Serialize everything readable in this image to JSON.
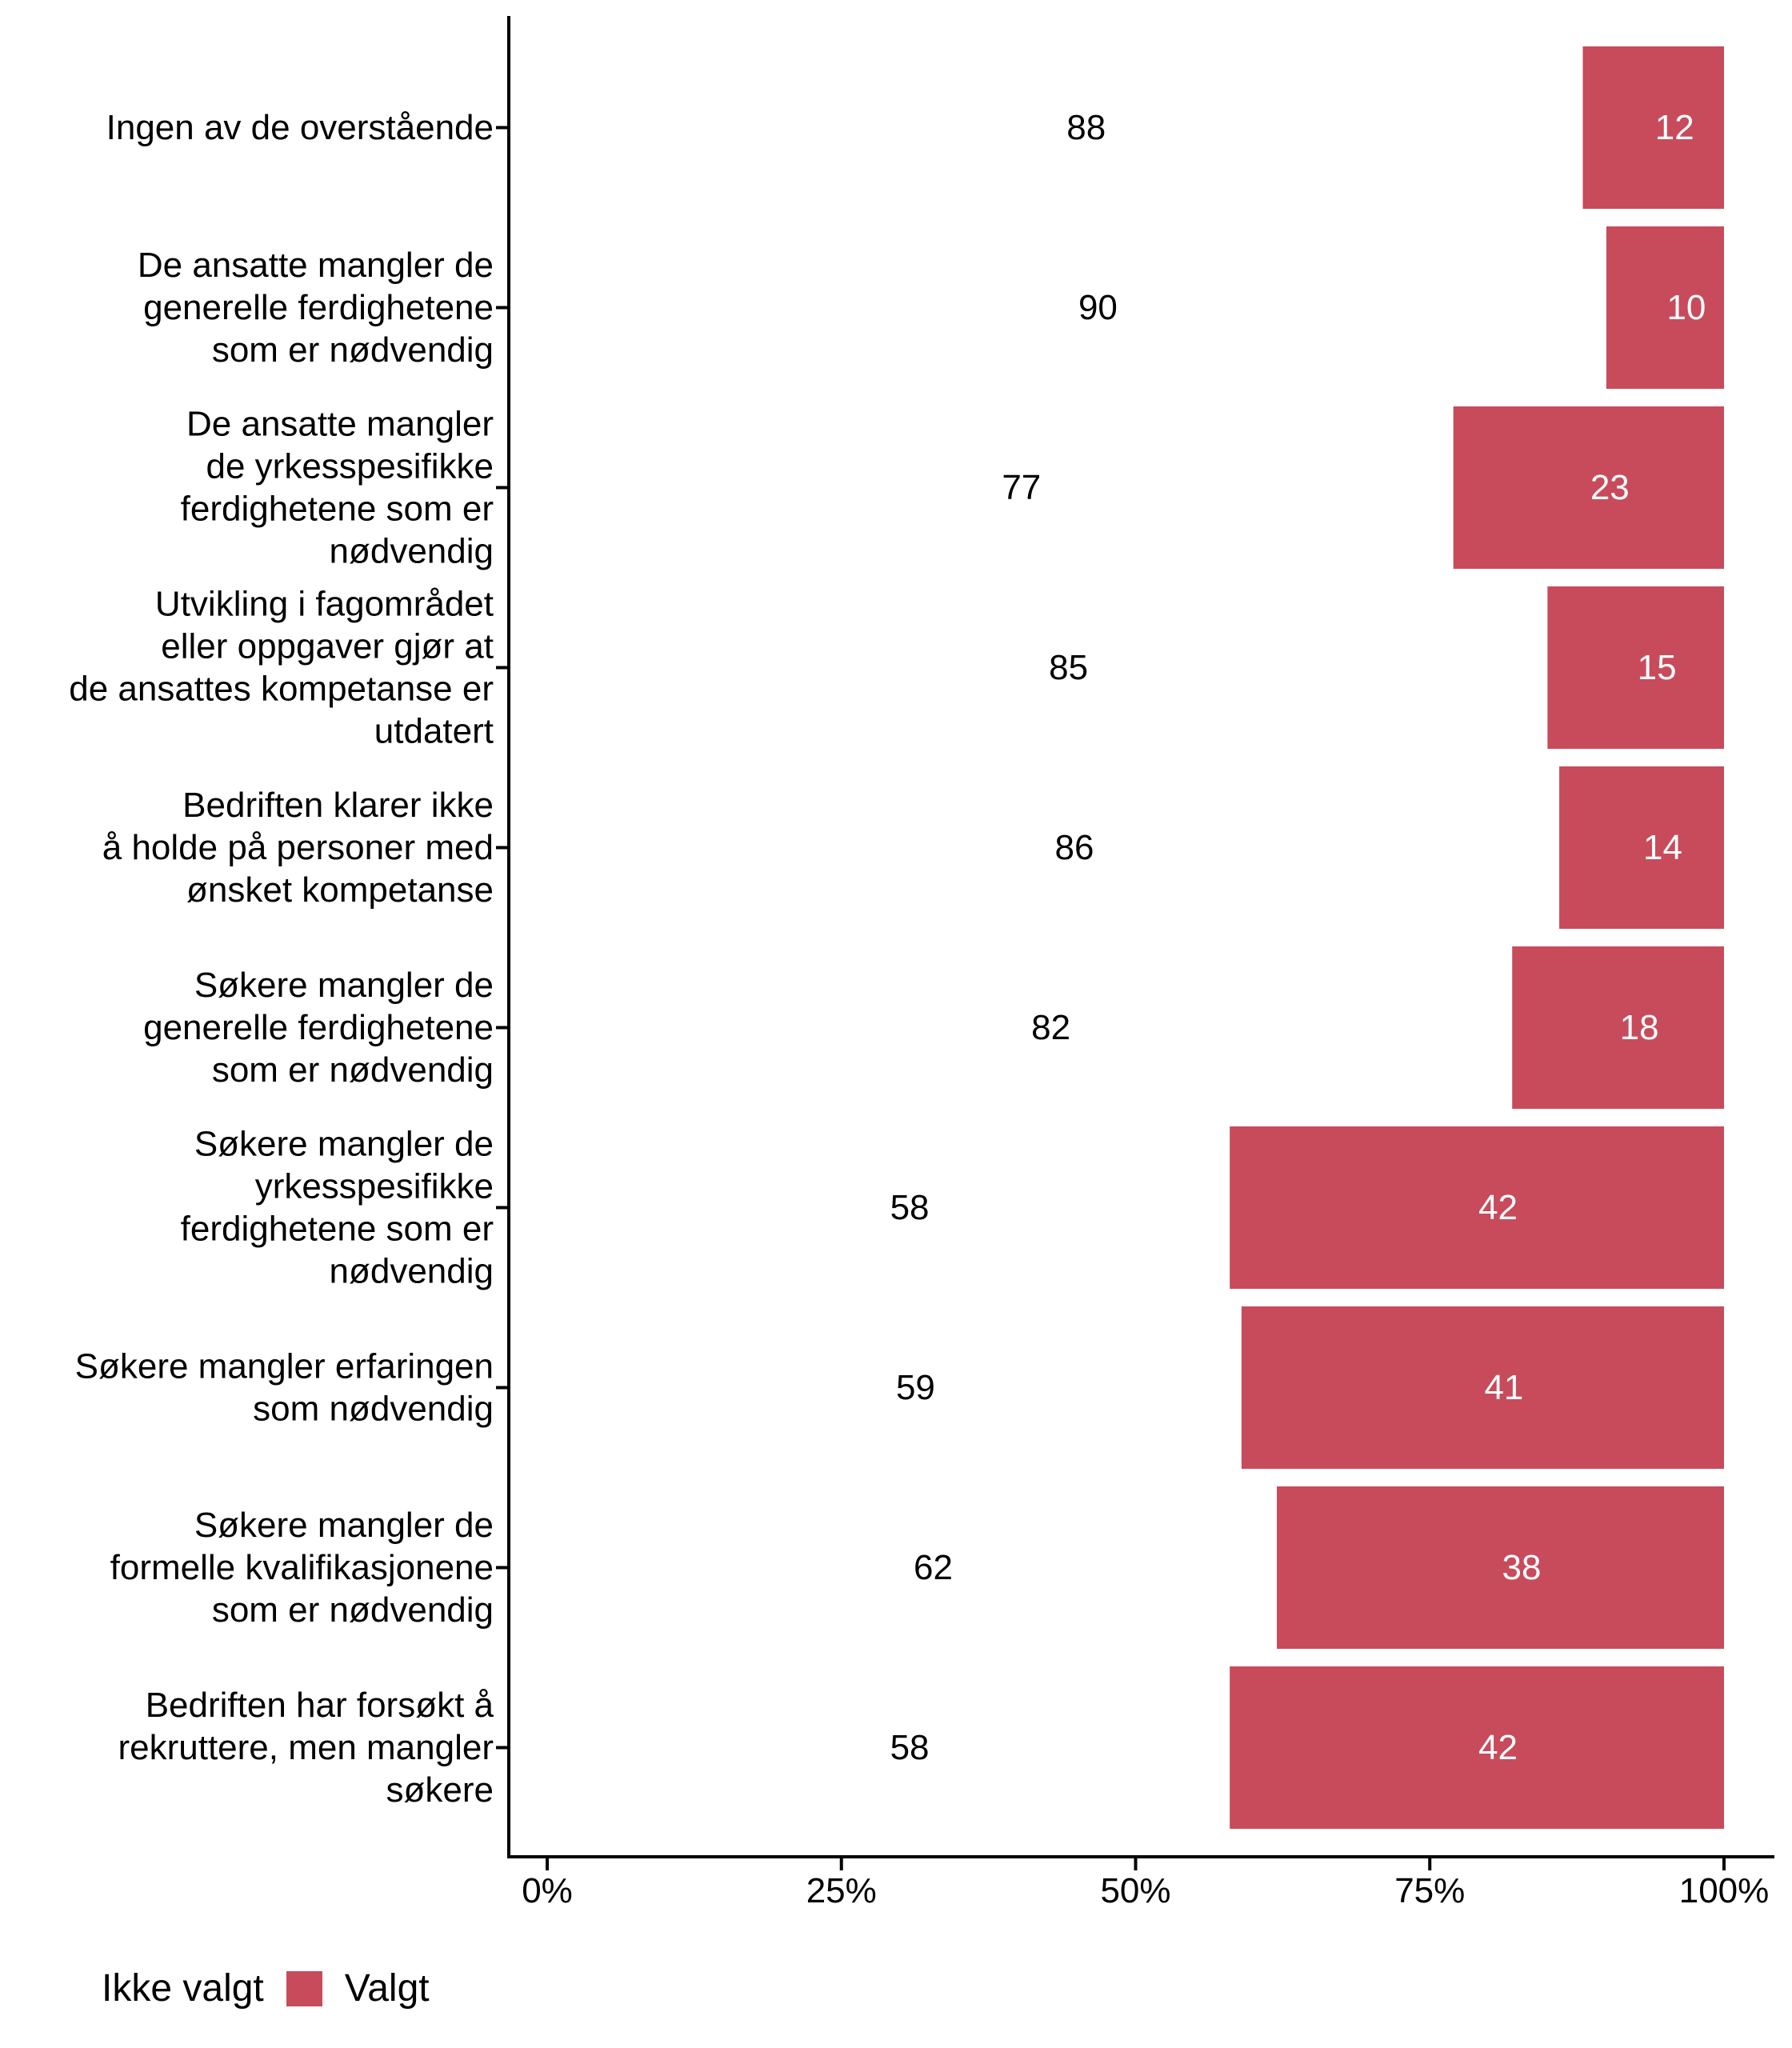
{
  "chart_data": {
    "type": "bar",
    "orientation": "horizontal",
    "stacked": true,
    "percent_scale": true,
    "title": "",
    "xlabel": "",
    "ylabel": "",
    "xlim": [
      0,
      100
    ],
    "x_ticks": [
      "0%",
      "25%",
      "50%",
      "75%",
      "100%"
    ],
    "x_tick_values": [
      0,
      25,
      50,
      75,
      100
    ],
    "grid": false,
    "legend_position": "bottom-left",
    "categories": [
      [
        "Ingen av de overstående"
      ],
      [
        "De ansatte mangler de",
        "generelle ferdighetene",
        "som er nødvendig"
      ],
      [
        "De ansatte mangler",
        "de yrkesspesifikke",
        "ferdighetene som er",
        "nødvendig"
      ],
      [
        "Utvikling i fagområdet",
        "eller oppgaver gjør at",
        "de ansattes kompetanse er",
        "utdatert"
      ],
      [
        "Bedriften klarer ikke",
        "å holde på personer med",
        "ønsket kompetanse"
      ],
      [
        "Søkere mangler de",
        "generelle ferdighetene",
        "som er nødvendig"
      ],
      [
        "Søkere mangler de",
        "yrkesspesifikke",
        "ferdighetene som er",
        "nødvendig"
      ],
      [
        "Søkere mangler erfaringen",
        "som nødvendig"
      ],
      [
        "Søkere mangler de",
        "formelle kvalifikasjonene",
        "som er nødvendig"
      ],
      [
        "Bedriften har forsøkt å",
        "rekruttere, men mangler",
        "søkere"
      ]
    ],
    "series": [
      {
        "name": "Ikke valgt",
        "color": "#FFFFFF",
        "label_color": "#000000",
        "values": [
          88,
          90,
          77,
          85,
          86,
          82,
          58,
          59,
          62,
          58
        ]
      },
      {
        "name": "Valgt",
        "color": "#C84B5B",
        "label_color": "#FFFFFF",
        "values": [
          12,
          10,
          23,
          15,
          14,
          18,
          42,
          41,
          38,
          42
        ]
      }
    ]
  },
  "legend": {
    "items": [
      {
        "label": "Ikke valgt",
        "color": "#FFFFFF"
      },
      {
        "label": "Valgt",
        "color": "#C84B5B"
      }
    ]
  }
}
